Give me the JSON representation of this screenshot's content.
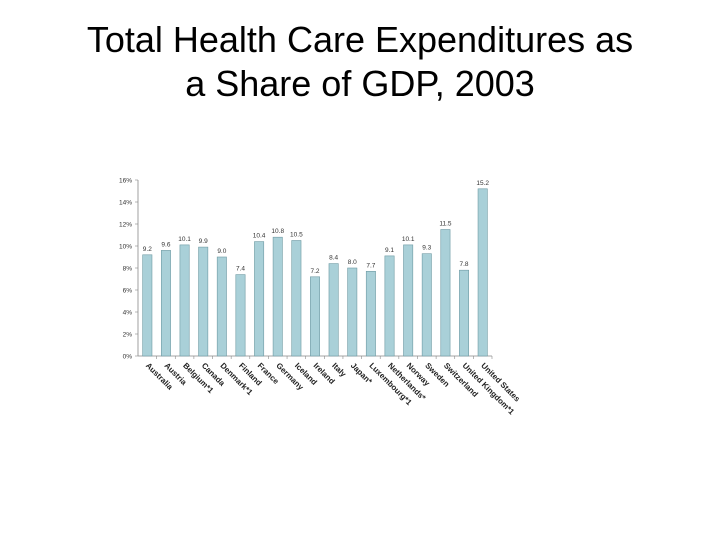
{
  "title_lines": [
    "Total Health Care Expenditures as",
    "a Share of GDP, 2003"
  ],
  "chart_data": {
    "type": "bar",
    "title": "Total Health Care Expenditures as a Share of GDP, 2003",
    "xlabel": "",
    "ylabel": "",
    "ylim": [
      0,
      16
    ],
    "grid": false,
    "y_ticks": [
      "0%",
      "2%",
      "4%",
      "6%",
      "8%",
      "10%",
      "12%",
      "14%",
      "16%"
    ],
    "categories": [
      "Australia",
      "Austria",
      "Belgium*1",
      "Canada",
      "Denmark*1",
      "Finland",
      "France",
      "Germany",
      "Iceland",
      "Ireland",
      "Italy",
      "Japan*",
      "Luxembourg*1",
      "Netherlands*",
      "Norway",
      "Sweden",
      "Switzerland",
      "United Kingdom*1",
      "United States"
    ],
    "values": [
      9.2,
      9.6,
      10.1,
      9.9,
      9.0,
      7.4,
      10.4,
      10.8,
      10.5,
      7.2,
      8.4,
      8.0,
      7.7,
      9.1,
      10.1,
      9.3,
      11.5,
      7.8,
      15.2
    ],
    "value_labels": [
      "9.2",
      "9.6",
      "10.1",
      "9.9",
      "9.0",
      "7.4",
      "10.4",
      "10.8",
      "10.5",
      "7.2",
      "8.4",
      "8.0",
      "7.7",
      "9.1",
      "10.1",
      "9.3",
      "11.5",
      "7.8",
      "15.2"
    ],
    "bar_color": "#a9d0d8",
    "bar_stroke": "#6e9aa3"
  }
}
